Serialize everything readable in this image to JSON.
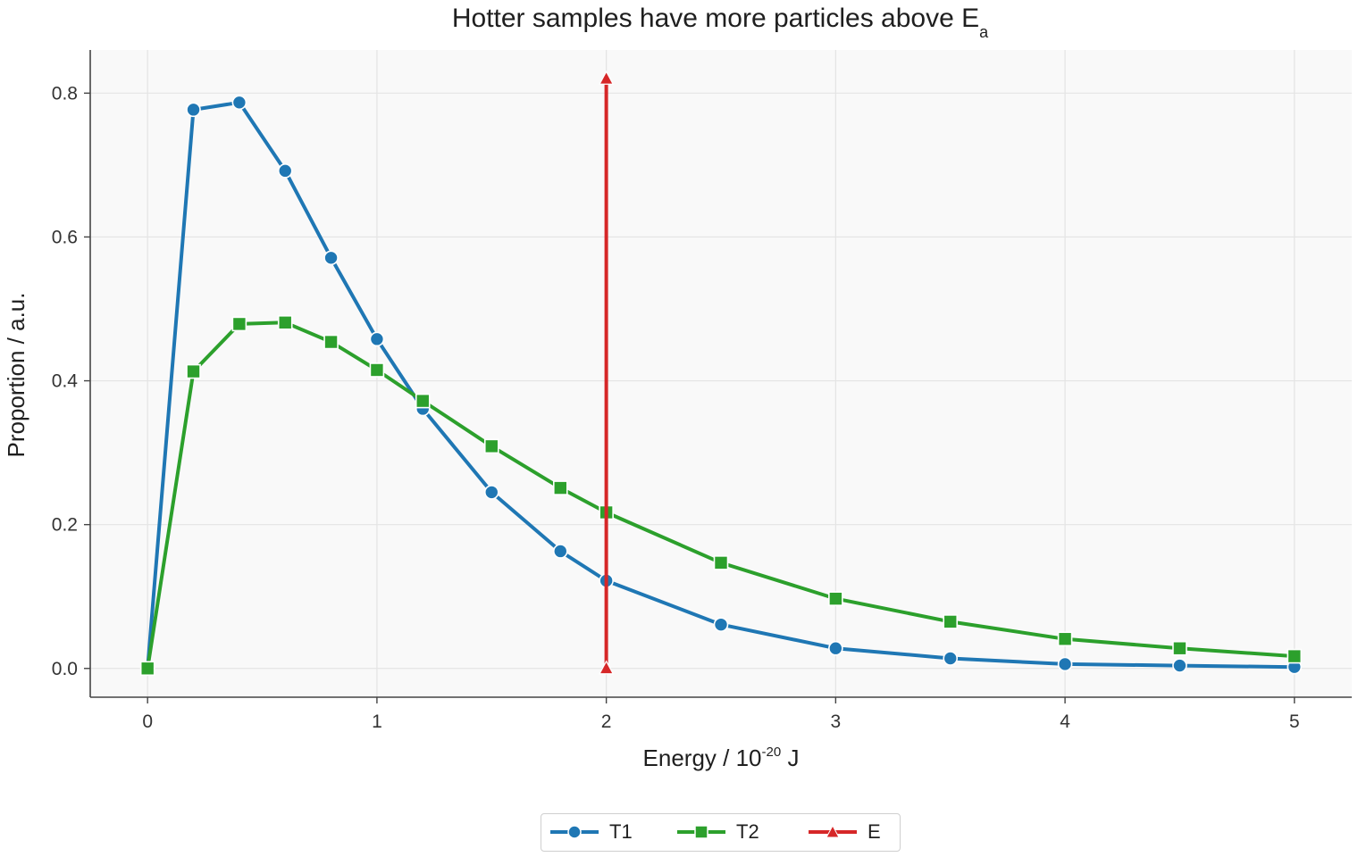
{
  "chart_data": {
    "type": "line",
    "title_main": "Hotter samples have more particles above E",
    "title_sub": "a",
    "xlabel_main": "Energy / 10",
    "xlabel_sup": "-20",
    "xlabel_unit": " J",
    "ylabel": "Proportion / a.u.",
    "xlim": [
      -0.25,
      5.25
    ],
    "ylim": [
      -0.04,
      0.86
    ],
    "xticks": [
      0,
      1,
      2,
      3,
      4,
      5
    ],
    "yticks": [
      0.0,
      0.2,
      0.4,
      0.6,
      0.8
    ],
    "xtick_labels": [
      "0",
      "1",
      "2",
      "3",
      "4",
      "5"
    ],
    "ytick_labels": [
      "0.0",
      "0.2",
      "0.4",
      "0.6",
      "0.8"
    ],
    "grid": true,
    "legend_position": "bottom-center",
    "series": [
      {
        "name": "T1",
        "color": "#1f77b4",
        "marker": "circle",
        "x": [
          0,
          0.2,
          0.4,
          0.6,
          0.8,
          1.0,
          1.2,
          1.5,
          1.8,
          2.0,
          2.5,
          3.0,
          3.5,
          4.0,
          4.5,
          5.0
        ],
        "y": [
          0.0,
          0.777,
          0.787,
          0.692,
          0.571,
          0.458,
          0.361,
          0.245,
          0.163,
          0.122,
          0.061,
          0.028,
          0.014,
          0.006,
          0.004,
          0.002
        ]
      },
      {
        "name": "T2",
        "color": "#2ca02c",
        "marker": "square",
        "x": [
          0,
          0.2,
          0.4,
          0.6,
          0.8,
          1.0,
          1.2,
          1.5,
          1.8,
          2.0,
          2.5,
          3.0,
          3.5,
          4.0,
          4.5,
          5.0
        ],
        "y": [
          0.0,
          0.413,
          0.479,
          0.481,
          0.454,
          0.415,
          0.372,
          0.309,
          0.251,
          0.217,
          0.147,
          0.097,
          0.065,
          0.041,
          0.028,
          0.017
        ]
      },
      {
        "name": "E",
        "color": "#d62728",
        "marker": "triangle",
        "x": [
          2.0,
          2.0
        ],
        "y": [
          0.0,
          0.82
        ]
      }
    ]
  }
}
